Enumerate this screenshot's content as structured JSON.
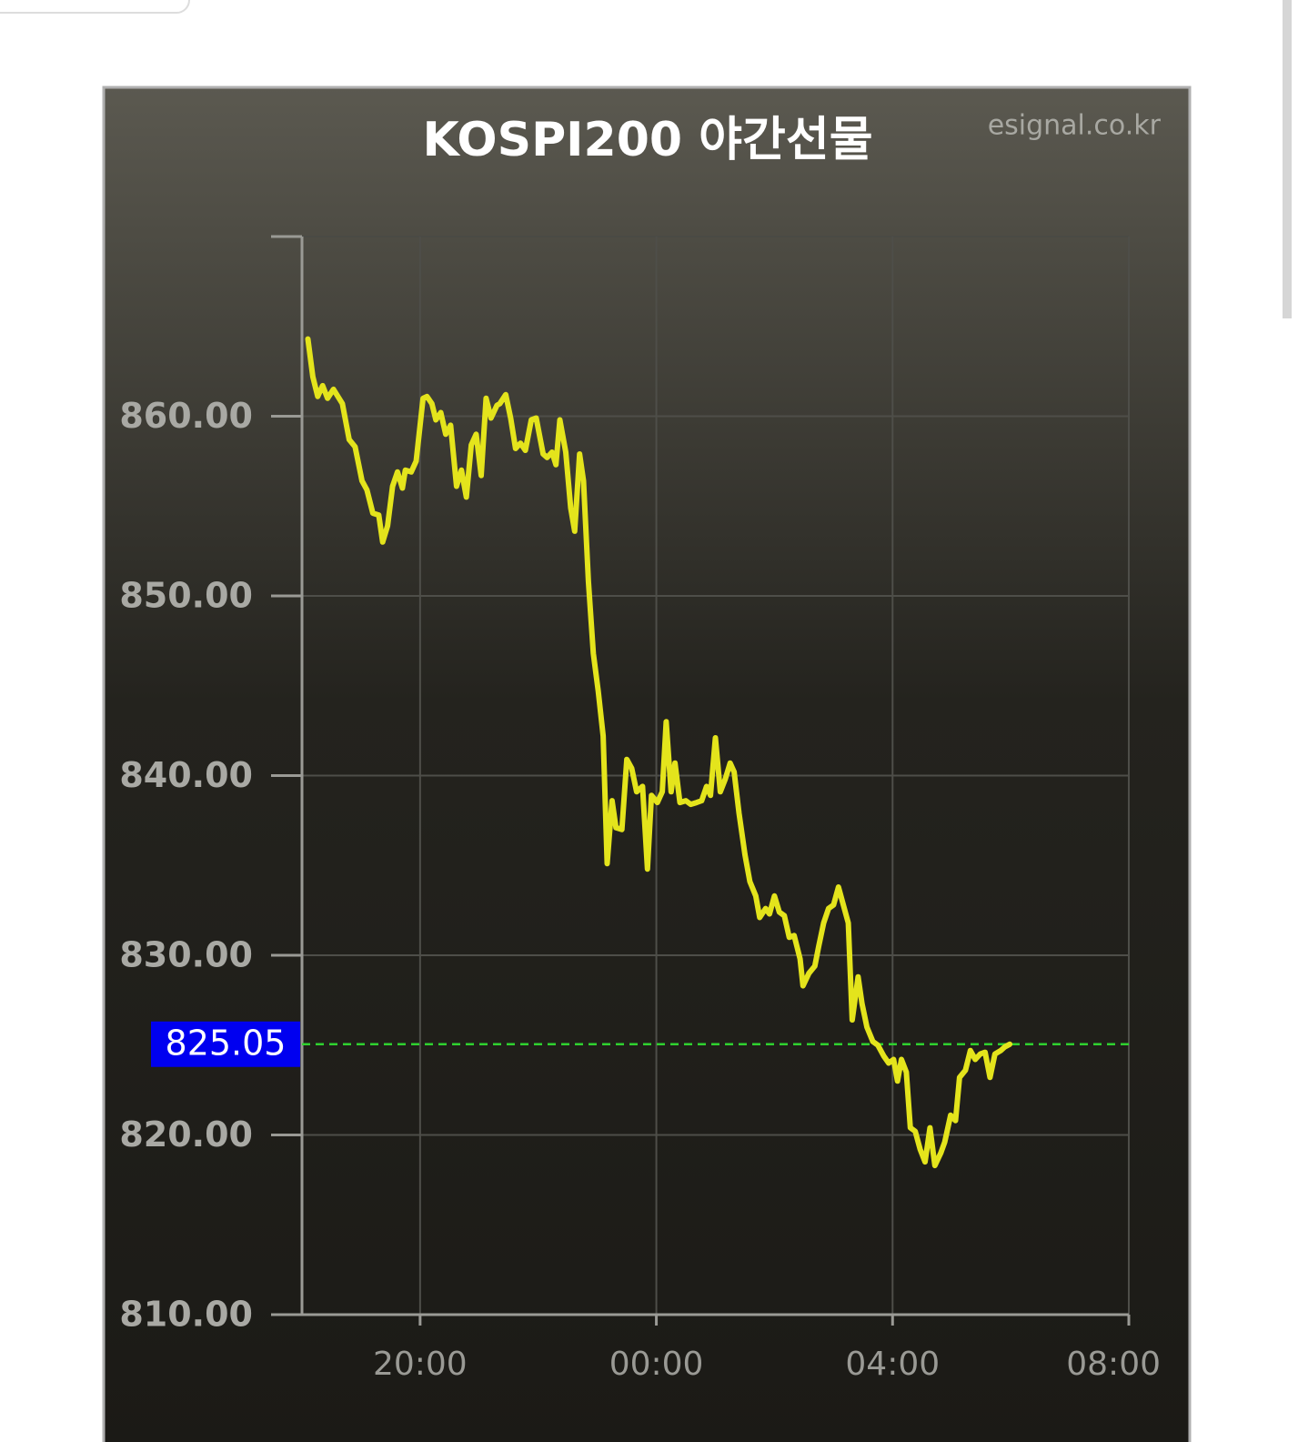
{
  "chart_data": {
    "type": "line",
    "title": "KOSPI200 야간선물",
    "watermark": "esignal.co.kr",
    "x": [
      "18:06",
      "18:11",
      "18:16",
      "18:21",
      "18:26",
      "18:32",
      "18:41",
      "18:48",
      "18:54",
      "19:01",
      "19:06",
      "19:12",
      "19:18",
      "19:22",
      "19:27",
      "19:32",
      "19:37",
      "19:42",
      "19:45",
      "19:51",
      "19:56",
      "20:03",
      "20:07",
      "20:12",
      "20:16",
      "20:21",
      "20:26",
      "20:31",
      "20:37",
      "20:42",
      "20:47",
      "20:52",
      "20:57",
      "21:02",
      "21:07",
      "21:12",
      "21:18",
      "21:21",
      "21:27",
      "21:32",
      "21:37",
      "21:42",
      "21:47",
      "21:53",
      "21:58",
      "22:05",
      "22:09",
      "22:14",
      "22:18",
      "22:22",
      "22:28",
      "22:33",
      "22:37",
      "22:42",
      "22:46",
      "22:51",
      "22:56",
      "23:01",
      "23:06",
      "23:10",
      "23:15",
      "23:19",
      "23:25",
      "23:30",
      "23:35",
      "23:40",
      "23:46",
      "23:51",
      "23:55",
      "00:01",
      "00:06",
      "00:10",
      "00:15",
      "00:19",
      "00:24",
      "00:30",
      "00:35",
      "00:41",
      "00:46",
      "00:51",
      "00:55",
      "01:00",
      "01:05",
      "01:10",
      "01:15",
      "01:19",
      "01:24",
      "01:30",
      "01:35",
      "01:41",
      "01:45",
      "01:51",
      "01:55",
      "02:00",
      "02:05",
      "02:10",
      "02:15",
      "02:20",
      "02:26",
      "02:29",
      "02:35",
      "02:41",
      "02:45",
      "02:50",
      "02:55",
      "03:00",
      "03:05",
      "03:09",
      "03:15",
      "03:19",
      "03:25",
      "03:29",
      "03:34",
      "03:40",
      "03:45",
      "03:51",
      "03:56",
      "04:01",
      "04:05",
      "04:09",
      "04:14",
      "04:18",
      "04:23",
      "04:28",
      "04:33",
      "04:38",
      "04:43",
      "04:49",
      "04:53",
      "04:59",
      "05:04",
      "05:08",
      "05:14",
      "05:19",
      "05:24",
      "05:29",
      "05:34",
      "05:39",
      "05:44",
      "05:50",
      "05:54",
      "05:59"
    ],
    "series": [
      {
        "name": "KOSPI200 야간선물",
        "color": "#e4e41c",
        "values": [
          864.3,
          862.2,
          861.1,
          861.7,
          861.0,
          861.5,
          860.7,
          858.7,
          858.3,
          856.4,
          855.9,
          854.6,
          854.5,
          853.0,
          853.9,
          856.1,
          856.9,
          856.0,
          857.0,
          856.9,
          857.5,
          861.0,
          861.1,
          860.7,
          859.8,
          860.2,
          859.0,
          859.5,
          856.1,
          857.0,
          855.5,
          858.4,
          859.0,
          856.7,
          861.0,
          859.9,
          860.6,
          860.7,
          861.2,
          859.9,
          858.2,
          858.5,
          858.1,
          859.8,
          859.9,
          857.9,
          857.7,
          858.0,
          857.3,
          859.8,
          858.0,
          854.9,
          853.6,
          857.9,
          856.4,
          850.8,
          846.8,
          844.7,
          842.2,
          835.1,
          838.6,
          837.1,
          837.0,
          840.9,
          840.4,
          839.1,
          839.4,
          834.8,
          838.9,
          838.5,
          839.1,
          843.0,
          839.1,
          840.7,
          838.5,
          838.6,
          838.4,
          838.5,
          838.6,
          839.4,
          838.9,
          842.1,
          839.1,
          839.8,
          840.7,
          840.2,
          837.9,
          835.6,
          834.1,
          833.3,
          832.1,
          832.6,
          832.3,
          833.3,
          832.4,
          832.2,
          831.0,
          831.1,
          829.8,
          828.3,
          829.0,
          829.4,
          830.5,
          831.8,
          832.6,
          832.8,
          833.8,
          833.0,
          831.8,
          826.4,
          828.8,
          827.3,
          826.0,
          825.2,
          825.0,
          824.4,
          824.0,
          824.2,
          823.0,
          824.2,
          823.5,
          820.4,
          820.2,
          819.2,
          818.5,
          820.4,
          818.3,
          819.0,
          819.6,
          821.1,
          820.8,
          823.2,
          823.6,
          824.7,
          824.2,
          824.5,
          824.6,
          823.2,
          824.5,
          824.7,
          824.9,
          825.05
        ]
      }
    ],
    "current_value": 825.05,
    "current_line_color": "#2fd12f",
    "current_label_color": "#0000f0",
    "xlim": [
      "18:00",
      "08:00"
    ],
    "xticks": [
      "20:00",
      "00:00",
      "04:00",
      "08:00"
    ],
    "ylim": [
      810,
      870
    ],
    "yticks": [
      {
        "value": 810,
        "label": "810.00"
      },
      {
        "value": 820,
        "label": "820.00"
      },
      {
        "value": 830,
        "label": "830.00"
      },
      {
        "value": 840,
        "label": "840.00"
      },
      {
        "value": 850,
        "label": "850.00"
      },
      {
        "value": 860,
        "label": "860.00"
      }
    ],
    "grid": true
  }
}
